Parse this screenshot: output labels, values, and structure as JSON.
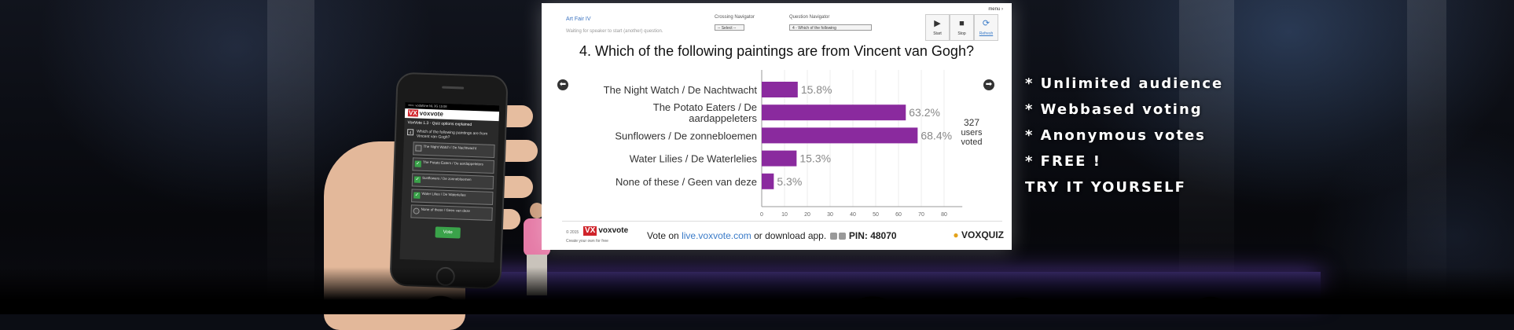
{
  "screen": {
    "title": "Art Fair IV",
    "status": "Waiting for speaker to start (another) question.",
    "crossing_navigator_label": "Crossing Navigator",
    "crossing_navigator_value": "-- Select --",
    "question_navigator_label": "Question Navigator",
    "question_navigator_value": "4 - Which of the following",
    "menu_label": "menu",
    "menu_icon": "chevron-right-icon",
    "start_label": "Start",
    "start_icon": "play-icon",
    "stop_label": "Stop",
    "stop_icon": "stop-icon",
    "refresh_label": "Refresh",
    "refresh_icon": "refresh-icon",
    "prev_icon": "arrow-left-icon",
    "next_icon": "arrow-right-icon",
    "voters_count": "327",
    "voters_text_1": "users",
    "voters_text_2": "voted",
    "footer_copyright": "© 2015",
    "footer_brand": "voxvote",
    "footer_brand_mark": "VX",
    "footer_tagline": "Create your own for free",
    "vote_on": "Vote on",
    "vote_url": "live.voxvote.com",
    "or_download": "or download app.",
    "pin": "PIN: 48070",
    "voxquiz": "VOXQUIZ",
    "voxquiz_icon": "bulb-icon",
    "bar_color": "#8a2a9e",
    "label_color": "#888888"
  },
  "chart_data": {
    "type": "bar",
    "orientation": "horizontal",
    "title": "4. Which of the following paintings are from Vincent van Gogh?",
    "categories": [
      "The Night Watch / De Nachtwacht",
      "The Potato Eaters / De aardappeleters",
      "Sunflowers / De zonnebloemen",
      "Water Lilies / De Waterlelies",
      "None of these / Geen van deze"
    ],
    "category_lines": [
      [
        "The Night Watch / De Nachtwacht"
      ],
      [
        "The Potato Eaters / De",
        "aardappeleters"
      ],
      [
        "Sunflowers / De zonnebloemen"
      ],
      [
        "Water Lilies / De Waterlelies"
      ],
      [
        "None of these / Geen van deze"
      ]
    ],
    "values": [
      15.8,
      63.2,
      68.4,
      15.3,
      5.3
    ],
    "value_labels": [
      "15.8%",
      "63.2%",
      "68.4%",
      "15.3%",
      "5.3%"
    ],
    "xlim": [
      0,
      88
    ],
    "xticks": [
      0,
      10,
      20,
      30,
      40,
      50,
      60,
      70,
      80
    ],
    "grid": true,
    "xlabel": "",
    "ylabel": ""
  },
  "phone": {
    "status_bar": "••••○ vodafone NL  3G  15:08",
    "logo": "voxvote",
    "logo_mark": "VX",
    "title": "VoxVote 1.3 - Quiz options explained",
    "question_number": "4",
    "question": "Which of the following paintings are from Vincent van Gogh?",
    "options": [
      {
        "label": "The Night Watch / De Nachtwacht",
        "checked": false
      },
      {
        "label": "The Potato Eaters / De aardappeleters",
        "checked": true
      },
      {
        "label": "Sunflowers / De zonnebloemen",
        "checked": true
      },
      {
        "label": "Water Lilies / De Waterlelies",
        "checked": true
      },
      {
        "label": "None of these / Geen van deze",
        "checked": false
      }
    ],
    "check_mark": "✓",
    "vote_button": "Vote"
  },
  "features": [
    "* Unlimited audience",
    "* Webbased voting",
    "* Anonymous votes",
    "* FREE !",
    "TRY IT YOURSELF"
  ]
}
